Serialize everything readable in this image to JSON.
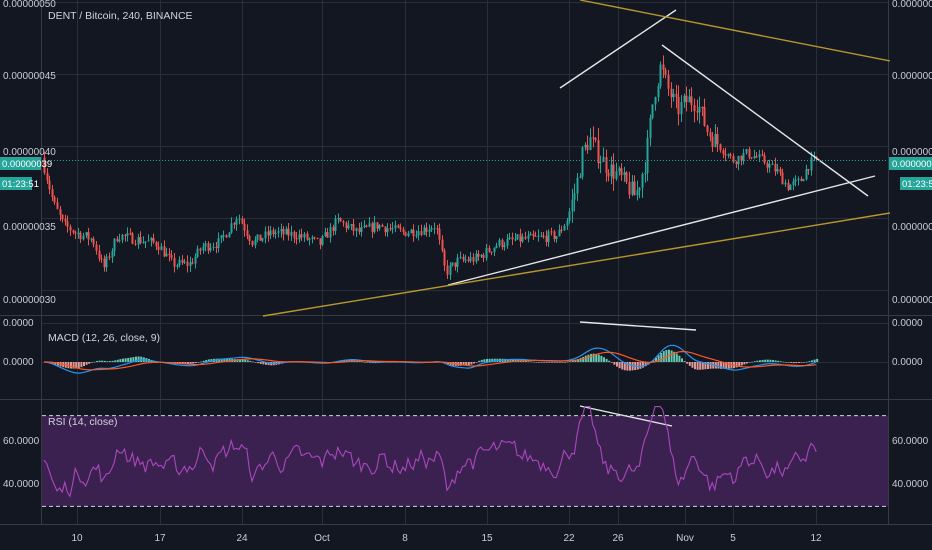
{
  "chart_data": {
    "type": "candlestick",
    "title": "DENT / Bitcoin, 240, BINANCE",
    "colors": {
      "background": "#131722",
      "grid": "#2a2e39",
      "up": "#26a69a",
      "down": "#ef5350",
      "price_line": "#26a69a",
      "trendline_white": "#e6e6e6",
      "trendline_gold": "#b8962e",
      "macd": "#2196f3",
      "signal": "#ff5722",
      "rsi": "#ab47bc",
      "rsi_band": "#3b2150",
      "rsi_levels": "#cfd3dc"
    },
    "x_ticks": [
      "10",
      "17",
      "24",
      "Oct",
      "8",
      "15",
      "22",
      "26",
      "Nov",
      "5",
      "12"
    ],
    "price_axis": {
      "ticks": [
        "0.00000050",
        "0.00000045",
        "0.00000040",
        "0.00000035",
        "0.00000030"
      ],
      "ylim": [
        2.93e-07,
        5e-07
      ],
      "current_price": "0.00000039",
      "countdown": "01:23:51"
    },
    "candles_ohlc_approx": [
      {
        "period": "start",
        "open": 3.9e-07,
        "high": 3.9e-07,
        "low": 3.3e-07,
        "close": 3.5e-07
      },
      {
        "period": "Sep 10-17",
        "open": 3.4e-07,
        "high": 3.5e-07,
        "low": 3.05e-07,
        "close": 3.3e-07
      },
      {
        "period": "Sep 17-24",
        "open": 3.3e-07,
        "high": 3.8e-07,
        "low": 3.05e-07,
        "close": 3.4e-07
      },
      {
        "period": "Sep 24-Oct 8",
        "open": 3.4e-07,
        "high": 3.5e-07,
        "low": 3.2e-07,
        "close": 3.4e-07
      },
      {
        "period": "Oct 8-15",
        "open": 3.4e-07,
        "high": 3.5e-07,
        "low": 3.1e-07,
        "close": 3.2e-07
      },
      {
        "period": "Oct 15-22",
        "open": 3.2e-07,
        "high": 3.4e-07,
        "low": 3.2e-07,
        "close": 3.4e-07
      },
      {
        "period": "Oct 22-26",
        "open": 3.4e-07,
        "high": 4.2e-07,
        "low": 3.6e-07,
        "close": 3.75e-07
      },
      {
        "period": "Oct 26-Nov",
        "open": 3.75e-07,
        "high": 4.65e-07,
        "low": 3.6e-07,
        "close": 4.4e-07
      },
      {
        "period": "Nov-Nov 5",
        "open": 4.4e-07,
        "high": 4.5e-07,
        "low": 3.9e-07,
        "close": 4e-07
      },
      {
        "period": "Nov 5-12",
        "open": 4e-07,
        "high": 4e-07,
        "low": 3.7e-07,
        "close": 3.9e-07
      }
    ],
    "macd": {
      "label": "MACD (12, 26, close, 9)",
      "ticks": [
        "0.0000",
        "0.0000"
      ]
    },
    "rsi": {
      "label": "RSI (14, close)",
      "ticks": [
        "60.0000",
        "40.0000"
      ],
      "upper_level": 70,
      "lower_level": 30,
      "ylim": [
        24,
        76
      ],
      "last_value": 54
    },
    "grid": true
  }
}
